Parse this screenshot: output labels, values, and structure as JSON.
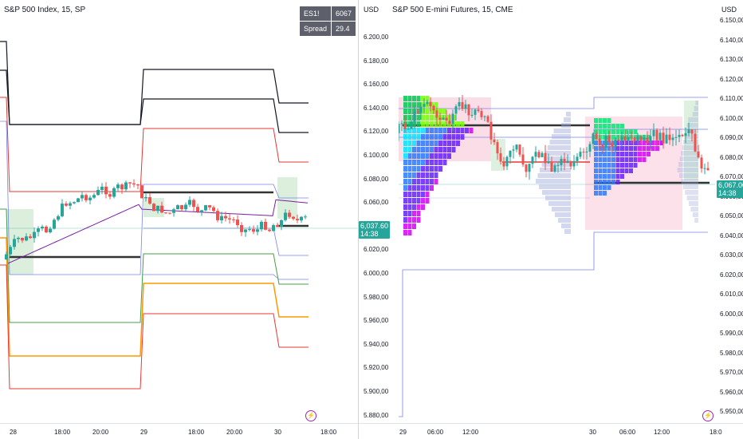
{
  "left_chart": {
    "title": "S&P 500 Index, 15, SP",
    "spread_table": {
      "symbol_label": "ES1!",
      "symbol_value": "6067",
      "spread_label": "Spread",
      "spread_value": "29.4"
    },
    "last_price": "6,037.60",
    "countdown": "14:38",
    "time_labels": [
      "28",
      "18:00",
      "20:00",
      "29",
      "18:00",
      "20:00",
      "30",
      "18:00"
    ]
  },
  "right_chart": {
    "title": "S&P 500 E-mini Futures, 15, CME",
    "currency_left": "USD",
    "currency_right": "USD",
    "left_axis_labels": [
      "6.200,00",
      "6.180,00",
      "6.160,00",
      "6.140,00",
      "6.120,00",
      "6.100,00",
      "6.080,00",
      "6.060,00",
      "6.040,00",
      "6.020,00",
      "6.000,00",
      "5.980,00",
      "5.960,00",
      "5.940,00",
      "5.920,00",
      "5.900,00",
      "5.880,00"
    ],
    "right_axis_labels": [
      "6.150,00",
      "6.140,00",
      "6.130,00",
      "6.120,00",
      "6.110,00",
      "6.100,00",
      "6.090,00",
      "6.080,00",
      "6.070,00",
      "6.060,00",
      "6.050,00",
      "6.040,00",
      "6.030,00",
      "6.020,00",
      "6.010,00",
      "6.000,00",
      "5.990,00",
      "5.980,00",
      "5.970,00",
      "5.960,00",
      "5.950,00"
    ],
    "last_price": "6,067.00",
    "countdown": "14:38",
    "time_labels": [
      "29",
      "06:00",
      "12:00",
      "30",
      "06:00",
      "12:00",
      "18:0"
    ]
  },
  "colors": {
    "up": "#26a69a",
    "down": "#ef5350",
    "black": "#131722",
    "red": "#e53935",
    "green": "#43a047",
    "orange": "#ff9800",
    "blue": "#7b83eb",
    "purple": "#9c27b0"
  },
  "chart_data": [
    {
      "type": "line",
      "title": "S&P 500 Index, 15, SP",
      "x": [
        "28",
        "18:00",
        "20:00",
        "29",
        "18:00",
        "20:00",
        "30",
        "18:00"
      ],
      "series": [],
      "legend": "top-right",
      "grid": false
    },
    {
      "type": "line",
      "title": "S&P 500 E-mini Futures, 15, CME",
      "x": [
        "29",
        "06:00",
        "12:00",
        "30",
        "06:00",
        "12:00",
        "18:0"
      ],
      "ylim": [
        5950,
        6150
      ],
      "series": [],
      "grid": false
    }
  ]
}
